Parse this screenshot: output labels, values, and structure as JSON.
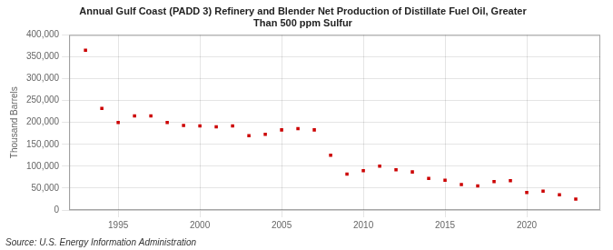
{
  "chart_data": {
    "type": "scatter",
    "title": "Annual Gulf Coast (PADD 3) Refinery and Blender Net Production of Distillate Fuel Oil, Greater\nThan 500 ppm Sulfur",
    "ylabel": "Thousand Barrels",
    "annotations": [
      "Source: U.S. Energy Information Administration"
    ],
    "x": [
      1993,
      1994,
      1995,
      1996,
      1997,
      1998,
      1999,
      2000,
      2001,
      2002,
      2003,
      2004,
      2005,
      2006,
      2007,
      2008,
      2009,
      2010,
      2011,
      2012,
      2013,
      2014,
      2015,
      2016,
      2017,
      2018,
      2019,
      2020,
      2021,
      2022,
      2023
    ],
    "values": [
      365000,
      232000,
      200000,
      215000,
      215000,
      200000,
      193000,
      192000,
      190000,
      192000,
      170000,
      173000,
      183000,
      186000,
      183000,
      125000,
      82000,
      90000,
      100000,
      92000,
      87000,
      72000,
      68000,
      58000,
      55000,
      65000,
      67000,
      40000,
      43000,
      35000,
      25000
    ],
    "color": "#cc0000",
    "marker": "square",
    "xlim": [
      1992,
      2024.5
    ],
    "xticks": [
      1995,
      2000,
      2005,
      2010,
      2015,
      2020
    ],
    "ylim": [
      0,
      400000
    ],
    "yticks": [
      0,
      {
        "value": 50000,
        "label": "50,000"
      },
      {
        "value": 100000,
        "label": "100,000"
      },
      {
        "value": 150000,
        "label": "150,000"
      },
      {
        "value": 200000,
        "label": "200,000"
      },
      {
        "value": 250000,
        "label": "250,000"
      },
      {
        "value": 300000,
        "label": "300,000"
      },
      {
        "value": 350000,
        "label": "350,000"
      },
      {
        "value": 400000,
        "label": "400,000"
      }
    ],
    "grid": true
  }
}
